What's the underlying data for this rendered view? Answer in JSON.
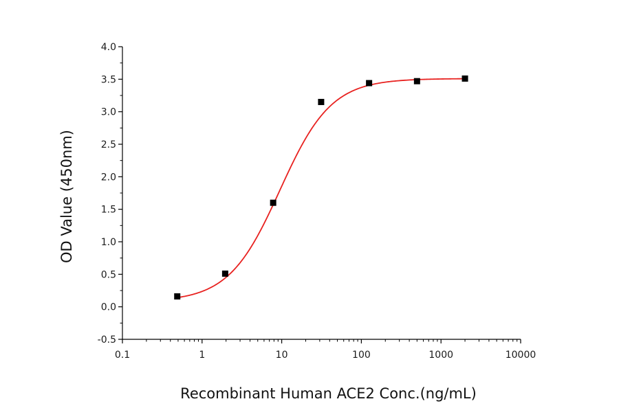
{
  "chart_data": {
    "type": "scatter",
    "xlabel": "Recombinant Human ACE2 Conc.(ng/mL)",
    "ylabel": "OD Value (450nm)",
    "x_scale": "log",
    "xlim": [
      0.1,
      10000
    ],
    "ylim": [
      -0.5,
      4.0
    ],
    "x_tick_labels": [
      "0.1",
      "1",
      "10",
      "100",
      "1000",
      "10000"
    ],
    "y_tick_labels": [
      "-0.5",
      "0.0",
      "0.5",
      "1.0",
      "1.5",
      "2.0",
      "2.5",
      "3.0",
      "3.5",
      "4.0"
    ],
    "grid": false,
    "series": [
      {
        "kind": "points",
        "marker": "square",
        "color": "#000000",
        "x": [
          0.488,
          1.95,
          7.81,
          31.25,
          125,
          500,
          2000
        ],
        "y": [
          0.16,
          0.51,
          1.6,
          3.15,
          3.44,
          3.47,
          3.51
        ]
      },
      {
        "kind": "fit-curve",
        "model": "4PL",
        "color": "#e8211f",
        "bottom": 0.08,
        "top": 3.51,
        "ec50": 9.5,
        "hill": 1.35,
        "x_range": [
          0.488,
          2000
        ]
      }
    ]
  }
}
